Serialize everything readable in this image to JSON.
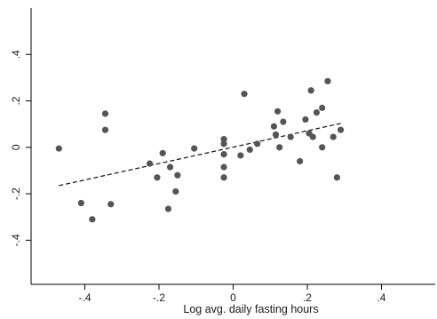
{
  "chart_data": {
    "type": "scatter",
    "title": "",
    "xlabel": "Log avg. daily fasting hours",
    "ylabel": "",
    "xlim": [
      -0.545,
      0.545
    ],
    "ylim": [
      -0.59,
      0.6
    ],
    "xticks": [
      -0.4,
      -0.2,
      0,
      0.2,
      0.4
    ],
    "xtick_labels": [
      "-.4",
      "-.2",
      "0",
      ".2",
      ".4"
    ],
    "yticks": [
      -0.4,
      -0.2,
      0,
      0.2,
      0.4
    ],
    "ytick_labels": [
      "-.4",
      "-.2",
      "0",
      ".2",
      ".4"
    ],
    "grid": false,
    "legend": "none",
    "colors": {
      "points": "#555555",
      "fit_line": "#111111",
      "axes": "#000000"
    },
    "points": [
      {
        "x": -0.47,
        "y": -0.005
      },
      {
        "x": -0.41,
        "y": -0.24
      },
      {
        "x": -0.38,
        "y": -0.31
      },
      {
        "x": -0.345,
        "y": 0.145
      },
      {
        "x": -0.345,
        "y": 0.075
      },
      {
        "x": -0.33,
        "y": -0.245
      },
      {
        "x": -0.225,
        "y": -0.07
      },
      {
        "x": -0.205,
        "y": -0.13
      },
      {
        "x": -0.19,
        "y": -0.025
      },
      {
        "x": -0.175,
        "y": -0.265
      },
      {
        "x": -0.17,
        "y": -0.085
      },
      {
        "x": -0.155,
        "y": -0.19
      },
      {
        "x": -0.15,
        "y": -0.12
      },
      {
        "x": -0.105,
        "y": -0.005
      },
      {
        "x": -0.025,
        "y": 0.035
      },
      {
        "x": -0.025,
        "y": 0.015
      },
      {
        "x": -0.025,
        "y": -0.03
      },
      {
        "x": -0.025,
        "y": -0.085
      },
      {
        "x": -0.025,
        "y": -0.13
      },
      {
        "x": 0.02,
        "y": -0.035
      },
      {
        "x": 0.03,
        "y": 0.23
      },
      {
        "x": 0.045,
        "y": -0.01
      },
      {
        "x": 0.065,
        "y": 0.015
      },
      {
        "x": 0.11,
        "y": 0.09
      },
      {
        "x": 0.115,
        "y": 0.055
      },
      {
        "x": 0.12,
        "y": 0.155
      },
      {
        "x": 0.125,
        "y": 0.0
      },
      {
        "x": 0.135,
        "y": 0.11
      },
      {
        "x": 0.155,
        "y": 0.045
      },
      {
        "x": 0.18,
        "y": -0.06
      },
      {
        "x": 0.195,
        "y": 0.12
      },
      {
        "x": 0.205,
        "y": 0.06
      },
      {
        "x": 0.21,
        "y": 0.245
      },
      {
        "x": 0.215,
        "y": 0.045
      },
      {
        "x": 0.225,
        "y": 0.15
      },
      {
        "x": 0.24,
        "y": 0.17
      },
      {
        "x": 0.24,
        "y": 0.0
      },
      {
        "x": 0.255,
        "y": 0.285
      },
      {
        "x": 0.27,
        "y": 0.045
      },
      {
        "x": 0.28,
        "y": -0.13
      },
      {
        "x": 0.29,
        "y": 0.075
      }
    ],
    "fit_line": {
      "x": [
        -0.47,
        0.29
      ],
      "y": [
        -0.165,
        0.103
      ]
    }
  }
}
